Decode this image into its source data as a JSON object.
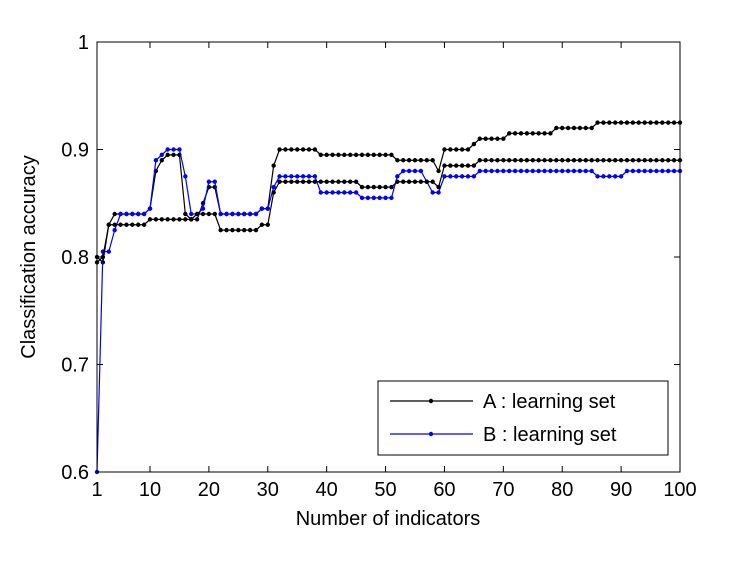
{
  "chart_data": {
    "type": "line",
    "xlabel": "Number of indicators",
    "ylabel": "Classification accuracy",
    "x": [
      1,
      2,
      3,
      4,
      5,
      6,
      7,
      8,
      9,
      10,
      11,
      12,
      13,
      14,
      15,
      16,
      17,
      18,
      19,
      20,
      21,
      22,
      23,
      24,
      25,
      26,
      27,
      28,
      29,
      30,
      31,
      32,
      33,
      34,
      35,
      36,
      37,
      38,
      39,
      40,
      41,
      42,
      43,
      44,
      45,
      46,
      47,
      48,
      49,
      50,
      51,
      52,
      53,
      54,
      55,
      56,
      57,
      58,
      59,
      60,
      61,
      62,
      63,
      64,
      65,
      66,
      67,
      68,
      69,
      70,
      71,
      72,
      73,
      74,
      75,
      76,
      77,
      78,
      79,
      80,
      81,
      82,
      83,
      84,
      85,
      86,
      87,
      88,
      89,
      90,
      91,
      92,
      93,
      94,
      95,
      96,
      97,
      98,
      99,
      100
    ],
    "xlim": [
      1,
      100
    ],
    "xticks": [
      1,
      10,
      20,
      30,
      40,
      50,
      60,
      70,
      80,
      90,
      100
    ],
    "ylim": [
      0.6,
      1
    ],
    "yticks": [
      0.6,
      0.7,
      0.8,
      0.9,
      1
    ],
    "legend": "lower right",
    "series": [
      {
        "name": "A : learning set",
        "color": "#000000",
        "values": [
          0.8,
          0.795,
          0.83,
          0.84,
          0.84,
          0.84,
          0.84,
          0.84,
          0.84,
          0.845,
          0.88,
          0.89,
          0.895,
          0.895,
          0.895,
          0.84,
          0.835,
          0.835,
          0.85,
          0.865,
          0.865,
          0.84,
          0.84,
          0.84,
          0.84,
          0.84,
          0.84,
          0.84,
          0.845,
          0.845,
          0.885,
          0.9,
          0.9,
          0.9,
          0.9,
          0.9,
          0.9,
          0.9,
          0.895,
          0.895,
          0.895,
          0.895,
          0.895,
          0.895,
          0.895,
          0.895,
          0.895,
          0.895,
          0.895,
          0.895,
          0.895,
          0.89,
          0.89,
          0.89,
          0.89,
          0.89,
          0.89,
          0.89,
          0.88,
          0.9,
          0.9,
          0.9,
          0.9,
          0.9,
          0.905,
          0.91,
          0.91,
          0.91,
          0.91,
          0.91,
          0.915,
          0.915,
          0.915,
          0.915,
          0.915,
          0.915,
          0.915,
          0.915,
          0.92,
          0.92,
          0.92,
          0.92,
          0.92,
          0.92,
          0.92,
          0.925,
          0.925,
          0.925,
          0.925,
          0.925,
          0.925,
          0.925,
          0.925,
          0.925,
          0.925,
          0.925,
          0.925,
          0.925,
          0.925,
          0.925
        ]
      },
      {
        "name": "B : learning set",
        "color": "#0000ff",
        "values": [
          0.6,
          0.805,
          0.805,
          0.825,
          0.84,
          0.84,
          0.84,
          0.84,
          0.84,
          0.845,
          0.89,
          0.895,
          0.9,
          0.9,
          0.9,
          0.875,
          0.84,
          0.84,
          0.845,
          0.87,
          0.87,
          0.84,
          0.84,
          0.84,
          0.84,
          0.84,
          0.84,
          0.84,
          0.845,
          0.845,
          0.865,
          0.875,
          0.875,
          0.875,
          0.875,
          0.875,
          0.875,
          0.875,
          0.86,
          0.86,
          0.86,
          0.86,
          0.86,
          0.86,
          0.86,
          0.855,
          0.855,
          0.855,
          0.855,
          0.855,
          0.855,
          0.875,
          0.88,
          0.88,
          0.88,
          0.88,
          0.87,
          0.86,
          0.86,
          0.875,
          0.875,
          0.875,
          0.875,
          0.875,
          0.875,
          0.88,
          0.88,
          0.88,
          0.88,
          0.88,
          0.88,
          0.88,
          0.88,
          0.88,
          0.88,
          0.88,
          0.88,
          0.88,
          0.88,
          0.88,
          0.88,
          0.88,
          0.88,
          0.88,
          0.88,
          0.875,
          0.875,
          0.875,
          0.875,
          0.875,
          0.88,
          0.88,
          0.88,
          0.88,
          0.88,
          0.88,
          0.88,
          0.88,
          0.88,
          0.88
        ]
      },
      {
        "color": "#000000",
        "values": [
          0.795,
          0.8,
          0.83,
          0.83,
          0.83,
          0.83,
          0.83,
          0.83,
          0.83,
          0.835,
          0.835,
          0.835,
          0.835,
          0.835,
          0.835,
          0.835,
          0.835,
          0.84,
          0.84,
          0.84,
          0.84,
          0.825,
          0.825,
          0.825,
          0.825,
          0.825,
          0.825,
          0.825,
          0.83,
          0.83,
          0.86,
          0.87,
          0.87,
          0.87,
          0.87,
          0.87,
          0.87,
          0.87,
          0.87,
          0.87,
          0.87,
          0.87,
          0.87,
          0.87,
          0.87,
          0.865,
          0.865,
          0.865,
          0.865,
          0.865,
          0.865,
          0.87,
          0.87,
          0.87,
          0.87,
          0.87,
          0.87,
          0.87,
          0.865,
          0.885,
          0.885,
          0.885,
          0.885,
          0.885,
          0.885,
          0.89,
          0.89,
          0.89,
          0.89,
          0.89,
          0.89,
          0.89,
          0.89,
          0.89,
          0.89,
          0.89,
          0.89,
          0.89,
          0.89,
          0.89,
          0.89,
          0.89,
          0.89,
          0.89,
          0.89,
          0.89,
          0.89,
          0.89,
          0.89,
          0.89,
          0.89,
          0.89,
          0.89,
          0.89,
          0.89,
          0.89,
          0.89,
          0.89,
          0.89,
          0.89
        ]
      }
    ]
  }
}
